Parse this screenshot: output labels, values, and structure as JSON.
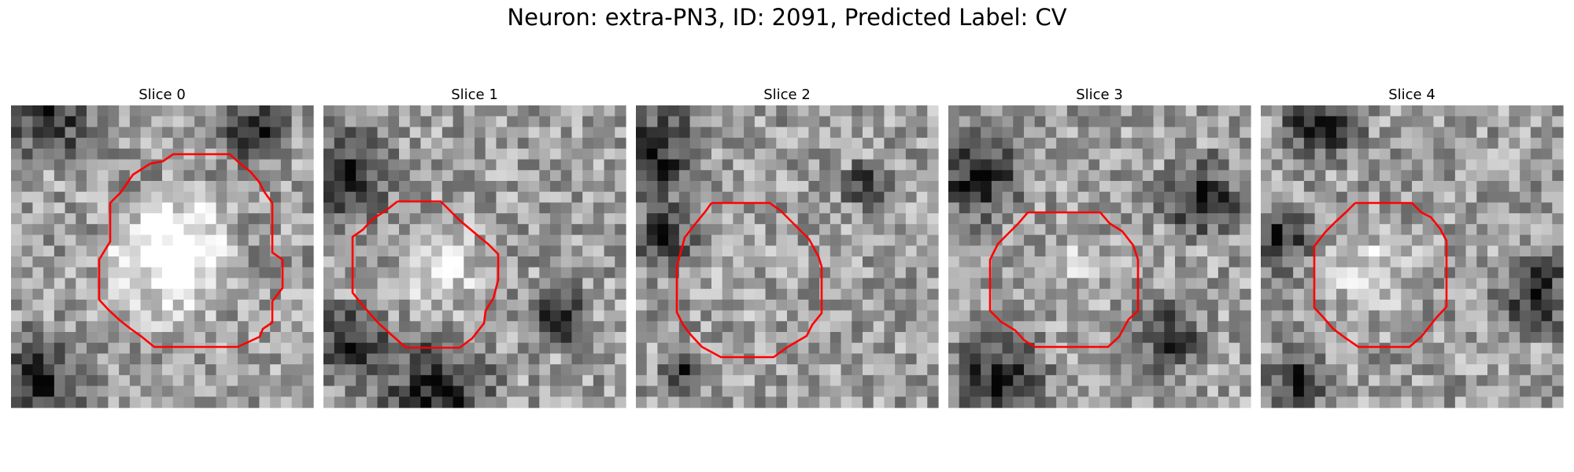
{
  "figure": {
    "title": "Neuron: extra-PN3, ID: 2091, Predicted Label: CV",
    "contour_color": "#ff0000"
  },
  "panels": [
    {
      "title": "Slice 0"
    },
    {
      "title": "Slice 1"
    },
    {
      "title": "Slice 2"
    },
    {
      "title": "Slice 3"
    },
    {
      "title": "Slice 4"
    }
  ]
}
